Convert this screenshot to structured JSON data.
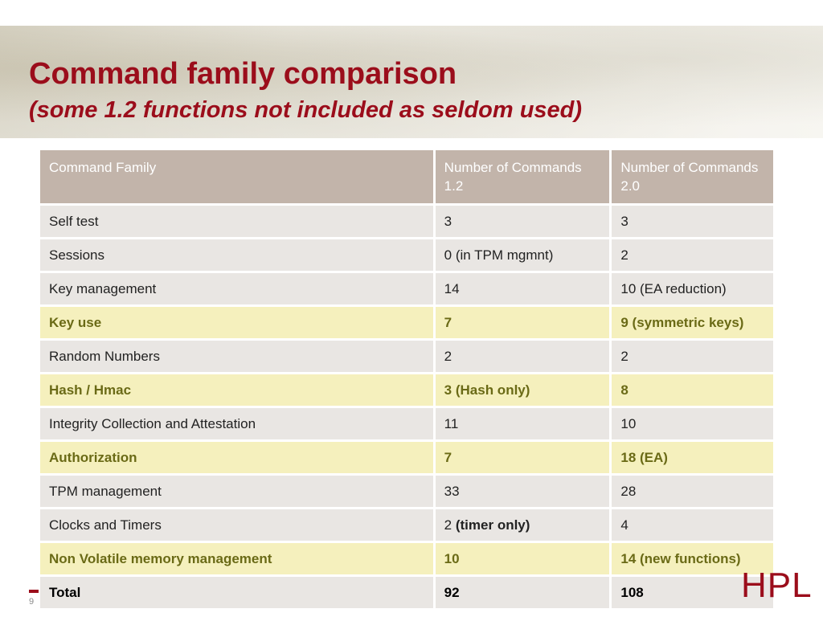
{
  "slide": {
    "title": "Command family comparison",
    "subtitle": "(some 1.2 functions not included as seldom used)",
    "number": "9",
    "logo_text": "HPL"
  },
  "table": {
    "headers": [
      "Command Family",
      "Number of Commands 1.2",
      "Number of Commands 2.0"
    ],
    "rows": [
      {
        "family": "Self test",
        "v12": "3",
        "v12_note": "",
        "v20": "3",
        "highlight": false
      },
      {
        "family": "Sessions",
        "v12": "0 (in TPM mgmnt)",
        "v12_note": "",
        "v20": "2",
        "highlight": false
      },
      {
        "family": "Key management",
        "v12": "14",
        "v12_note": "",
        "v20": "10 (EA reduction)",
        "highlight": false
      },
      {
        "family": "Key use",
        "v12": "7",
        "v12_note": "",
        "v20": "9 (symmetric keys)",
        "highlight": true
      },
      {
        "family": "Random Numbers",
        "v12": "2",
        "v12_note": "",
        "v20": "2",
        "highlight": false
      },
      {
        "family": "Hash / Hmac",
        "v12": "3 (Hash only)",
        "v12_note": "",
        "v20": "8",
        "highlight": true
      },
      {
        "family": "Integrity Collection and Attestation",
        "v12": "11",
        "v12_note": "",
        "v20": "10",
        "highlight": false
      },
      {
        "family": "Authorization",
        "v12": "7",
        "v12_note": "",
        "v20": "18  (EA)",
        "highlight": true
      },
      {
        "family": "TPM management",
        "v12": "33",
        "v12_note": "",
        "v20": "28",
        "highlight": false
      },
      {
        "family": "Clocks and Timers",
        "v12": "2 ",
        "v12_note": "(timer only)",
        "v20": "4",
        "highlight": false
      },
      {
        "family": "Non Volatile memory management",
        "v12": "10",
        "v12_note": "",
        "v20": "14 (new functions)",
        "highlight": true
      }
    ],
    "total": {
      "label": "Total",
      "v12": "92",
      "v20": "108"
    }
  },
  "colors": {
    "title": "#9b0d1b",
    "header_bg": "#c2b4aa",
    "row_bg": "#e9e6e3",
    "highlight_bg": "#f5f0bd",
    "highlight_text": "#6a6a16"
  }
}
